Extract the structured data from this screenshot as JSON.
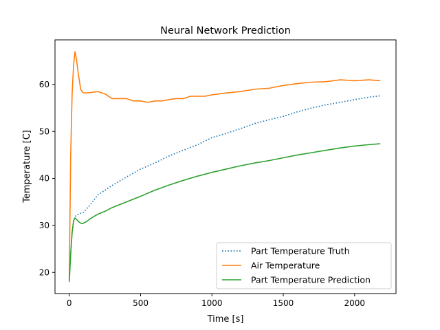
{
  "chart_data": {
    "type": "line",
    "title": "Neural Network Prediction",
    "xlabel": "Time [s]",
    "ylabel": "Temperature [C]",
    "xlim": [
      -100,
      2290
    ],
    "ylim": [
      15.5,
      69.5
    ],
    "xticks": [
      0,
      500,
      1000,
      1500,
      2000
    ],
    "yticks": [
      20,
      30,
      40,
      50,
      60
    ],
    "grid": false,
    "legend_position": "lower-right",
    "series": [
      {
        "name": "Part Temperature Truth",
        "color": "#1f77b4",
        "style": "dotted",
        "x": [
          0,
          10,
          20,
          30,
          40,
          50,
          60,
          80,
          100,
          150,
          200,
          250,
          300,
          400,
          500,
          600,
          700,
          800,
          900,
          1000,
          1100,
          1200,
          1300,
          1400,
          1500,
          1600,
          1700,
          1800,
          1900,
          2000,
          2100,
          2180
        ],
        "y": [
          18.5,
          24,
          28.5,
          30.8,
          31.8,
          32.2,
          32.3,
          32.6,
          32.8,
          34.5,
          36.5,
          37.5,
          38.5,
          40.3,
          42.0,
          43.3,
          44.8,
          46.0,
          47.2,
          48.7,
          49.6,
          50.6,
          51.7,
          52.5,
          53.2,
          54.2,
          55.0,
          55.7,
          56.2,
          56.8,
          57.3,
          57.6
        ]
      },
      {
        "name": "Air Temperature",
        "color": "#ff7f0e",
        "style": "solid",
        "x": [
          0,
          10,
          20,
          30,
          40,
          50,
          60,
          70,
          80,
          90,
          100,
          120,
          150,
          200,
          250,
          300,
          350,
          400,
          450,
          500,
          550,
          600,
          650,
          700,
          750,
          800,
          850,
          900,
          950,
          1000,
          1100,
          1200,
          1300,
          1400,
          1500,
          1600,
          1700,
          1800,
          1900,
          2000,
          2100,
          2180
        ],
        "y": [
          19,
          45,
          58,
          64,
          67,
          65.5,
          63,
          61,
          59,
          58.5,
          58.2,
          58.2,
          58.3,
          58.5,
          58.0,
          57.0,
          57.0,
          57.0,
          56.5,
          56.5,
          56.2,
          56.5,
          56.5,
          56.8,
          57.0,
          57.0,
          57.5,
          57.5,
          57.5,
          57.8,
          58.2,
          58.5,
          59.0,
          59.2,
          59.8,
          60.2,
          60.5,
          60.6,
          61.0,
          60.8,
          61.0,
          60.8
        ]
      },
      {
        "name": "Part Temperature Prediction",
        "color": "#2ca02c",
        "style": "solid",
        "x": [
          0,
          10,
          20,
          30,
          40,
          50,
          60,
          70,
          80,
          90,
          100,
          120,
          150,
          200,
          250,
          300,
          400,
          500,
          600,
          700,
          800,
          900,
          1000,
          1100,
          1200,
          1300,
          1400,
          1500,
          1600,
          1700,
          1800,
          1900,
          2000,
          2100,
          2180
        ],
        "y": [
          18,
          24,
          28.5,
          31.0,
          31.6,
          31.3,
          31.0,
          30.7,
          30.5,
          30.4,
          30.5,
          30.8,
          31.5,
          32.4,
          33.0,
          33.8,
          35.0,
          36.2,
          37.5,
          38.6,
          39.6,
          40.5,
          41.3,
          42.0,
          42.7,
          43.3,
          43.8,
          44.4,
          45.0,
          45.5,
          46.0,
          46.5,
          46.9,
          47.2,
          47.4
        ]
      }
    ]
  }
}
